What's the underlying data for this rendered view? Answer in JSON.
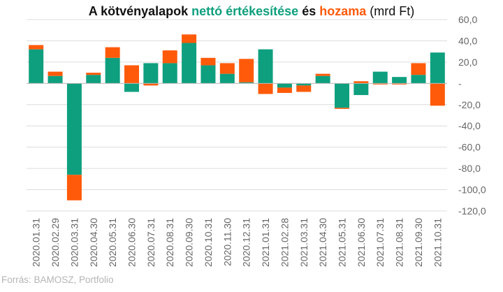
{
  "title": {
    "part1": "A kötvényalapok ",
    "part2": "nettó értékesítése",
    "part3": " és ",
    "part4": "hozama",
    "part5": " (mrd Ft)",
    "color_sales": "#0e9f7e",
    "color_yield": "#ff5a0a"
  },
  "source": "Forrás: BAMOSZ, Portfolio",
  "chart_data": {
    "type": "bar",
    "stacked": true,
    "categories": [
      "2020.01.31",
      "2020.02.29",
      "2020.03.31",
      "2020.04.30",
      "2020.05.31",
      "2020.06.30",
      "2020.07.31",
      "2020.08.31",
      "2020.09.30",
      "2020.10.31",
      "2020.11.30",
      "2020.12.31",
      "2021.01.31",
      "2021.02.28",
      "2021.03.31",
      "2021.04.30",
      "2021.05.31",
      "2021.06.30",
      "2021.07.31",
      "2021.08.31",
      "2021.09.30",
      "2021.10.31"
    ],
    "series": [
      {
        "name": "nettó értékesítése",
        "color": "#0e9f7e",
        "values": [
          32,
          7,
          -86,
          8,
          24,
          -8,
          19,
          19,
          38,
          17,
          9,
          1,
          32,
          -4,
          -2,
          7,
          -23,
          -11,
          11,
          6,
          8,
          29
        ]
      },
      {
        "name": "hozama",
        "color": "#ff5a0a",
        "values": [
          4,
          4,
          -24,
          2,
          10,
          17,
          -2,
          12,
          8,
          7,
          10,
          22,
          -10,
          -5,
          -6,
          2,
          -1,
          2,
          -1,
          -1,
          11,
          -21
        ]
      }
    ],
    "y_axis": {
      "position": "right",
      "ylim": [
        -120,
        60
      ],
      "ticks": [
        60,
        40,
        20,
        0,
        -20,
        -40,
        -60,
        -80,
        -100,
        -120
      ],
      "tick_labels": [
        "60,0",
        "40,0",
        "20,0",
        "-",
        "-20,0",
        "-40,0",
        "-60,0",
        "-80,0",
        "-100,0",
        "-120,0"
      ]
    },
    "grid": true,
    "x_label_rotation": "vertical"
  }
}
